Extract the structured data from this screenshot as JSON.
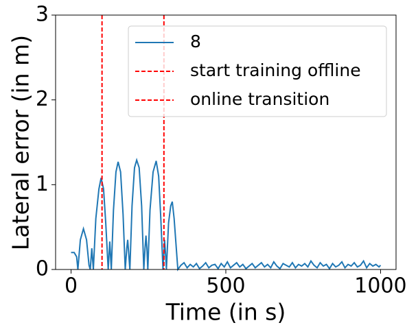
{
  "chart_data": {
    "type": "line",
    "xlabel": "Time (in s)",
    "ylabel": "Lateral error (in m)",
    "x": [
      0,
      10,
      18,
      22,
      30,
      40,
      50,
      58,
      62,
      67,
      72,
      80,
      90,
      97,
      105,
      112,
      120,
      125,
      130,
      137,
      145,
      152,
      160,
      168,
      175,
      180,
      183,
      186,
      190,
      197,
      205,
      212,
      220,
      228,
      235,
      239,
      242,
      245,
      248,
      255,
      265,
      275,
      283,
      290,
      297,
      300,
      302,
      305,
      308,
      315,
      322,
      327,
      333,
      340,
      345,
      355,
      365,
      375,
      385,
      395,
      405,
      415,
      425,
      435,
      445,
      455,
      465,
      475,
      485,
      495,
      505,
      515,
      525,
      535,
      545,
      555,
      565,
      575,
      585,
      595,
      605,
      615,
      625,
      635,
      645,
      655,
      665,
      675,
      685,
      695,
      705,
      715,
      725,
      735,
      745,
      755,
      765,
      775,
      785,
      795,
      805,
      815,
      825,
      835,
      845,
      855,
      865,
      875,
      885,
      895,
      905,
      915,
      925,
      935,
      945,
      955,
      965,
      975,
      985,
      995,
      1000
    ],
    "series": [
      {
        "name": "8",
        "color": "#1f77b4",
        "values": [
          0.2,
          0.2,
          0.15,
          0,
          0.35,
          0.48,
          0.35,
          0.05,
          0,
          0.25,
          0,
          0.6,
          0.95,
          1.08,
          0.95,
          0.55,
          0,
          0.33,
          0,
          0.7,
          1.15,
          1.27,
          1.15,
          0.65,
          0,
          0.25,
          0.35,
          0.2,
          0,
          0.75,
          1.2,
          1.29,
          1.2,
          0.75,
          0,
          0.25,
          0.4,
          0.25,
          0,
          0.7,
          1.15,
          1.28,
          1.1,
          0.6,
          0,
          0.2,
          0.35,
          0.2,
          0,
          0.55,
          0.75,
          0.8,
          0.6,
          0.25,
          0,
          0.05,
          0.08,
          0.02,
          0.06,
          0.03,
          0.07,
          0.01,
          0.04,
          0.08,
          0.02,
          0.05,
          0.06,
          0.01,
          0.07,
          0.03,
          0.09,
          0.02,
          0.05,
          0.08,
          0.03,
          0.06,
          0.01,
          0.04,
          0.07,
          0.02,
          0.05,
          0.08,
          0.03,
          0.06,
          0.02,
          0.09,
          0.04,
          0.01,
          0.07,
          0.05,
          0.03,
          0.08,
          0.02,
          0.06,
          0.04,
          0.07,
          0.03,
          0.1,
          0.05,
          0.02,
          0.08,
          0.04,
          0.06,
          0.01,
          0.07,
          0.03,
          0.05,
          0.09,
          0.02,
          0.06,
          0.04,
          0.08,
          0.03,
          0.05,
          0.1,
          0.02,
          0.07,
          0.04,
          0.06,
          0.03,
          0.05
        ]
      }
    ],
    "vlines": [
      {
        "name": "start training offline",
        "color": "#ff0000",
        "x": 100
      },
      {
        "name": "online transition",
        "color": "#ff0000",
        "x": 300
      }
    ],
    "xlim": [
      -50,
      1050
    ],
    "ylim": [
      0,
      3
    ],
    "xticks": [
      0,
      500,
      1000
    ],
    "yticks": [
      0,
      1,
      2,
      3
    ],
    "grid": false,
    "legend": "upper right"
  }
}
